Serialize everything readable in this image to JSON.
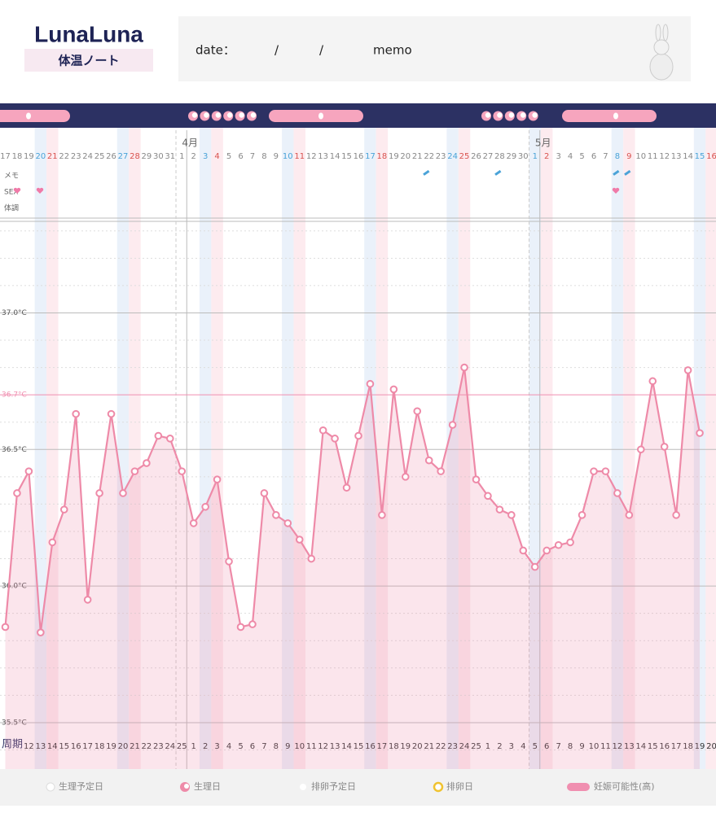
{
  "header": {
    "logo": "LunaLuna",
    "subtitle": "体温ノート",
    "date_label": "date：",
    "separator": "/",
    "memo_label": "memo"
  },
  "row_labels": [
    "メモ",
    "SEX",
    "体調"
  ],
  "chart_data": {
    "type": "line",
    "categories": [
      "17",
      "18",
      "19",
      "20",
      "21",
      "22",
      "23",
      "24",
      "25",
      "26",
      "27",
      "28",
      "29",
      "30",
      "31",
      "1",
      "2",
      "3",
      "4",
      "5",
      "6",
      "7",
      "8",
      "9",
      "10",
      "11",
      "12",
      "13",
      "14",
      "15",
      "16",
      "17",
      "18",
      "19",
      "20",
      "21",
      "22",
      "23",
      "24",
      "25",
      "26",
      "27",
      "28",
      "29",
      "30",
      "1",
      "2",
      "3",
      "4",
      "5",
      "6",
      "7",
      "8",
      "9",
      "10",
      "11",
      "12",
      "13",
      "14",
      "15",
      "16"
    ],
    "month_labels": [
      "4月",
      "5月"
    ],
    "cycle_label": "周期",
    "cycle_days": [
      null,
      null,
      "12",
      "13",
      "14",
      "15",
      "16",
      "17",
      "18",
      "19",
      "20",
      "21",
      "22",
      "23",
      "24",
      "25",
      "1",
      "2",
      "3",
      "4",
      "5",
      "6",
      "7",
      "8",
      "9",
      "10",
      "11",
      "12",
      "13",
      "14",
      "15",
      "16",
      "17",
      "18",
      "19",
      "20",
      "21",
      "22",
      "23",
      "24",
      "25",
      "1",
      "2",
      "3",
      "4",
      "5",
      "6",
      "7",
      "8",
      "9",
      "10",
      "11",
      "12",
      "13",
      "14",
      "15",
      "16",
      "17",
      "18",
      "19",
      "20"
    ],
    "values": [
      35.85,
      36.34,
      36.42,
      35.83,
      36.16,
      36.28,
      36.63,
      35.95,
      36.34,
      36.63,
      36.34,
      36.42,
      36.45,
      36.55,
      36.54,
      36.42,
      36.23,
      36.29,
      36.39,
      36.09,
      35.85,
      35.86,
      36.34,
      36.26,
      36.23,
      36.17,
      36.1,
      36.57,
      36.54,
      36.36,
      36.55,
      36.74,
      36.26,
      36.72,
      36.4,
      36.64,
      36.46,
      36.42,
      36.59,
      36.8,
      36.39,
      36.33,
      36.28,
      36.26,
      36.13,
      36.07,
      36.13,
      36.15,
      36.16,
      36.26,
      36.42,
      36.42,
      36.34,
      36.26,
      36.5,
      36.75,
      36.51,
      36.26,
      36.79,
      36.56,
      null
    ],
    "color": "#ee8aa8",
    "ylim": [
      35.33,
      37.335
    ],
    "yticks": [
      {
        "value": 35.5,
        "label": "35.5°C"
      },
      {
        "value": 36.0,
        "label": "36.0°C"
      },
      {
        "value": 36.5,
        "label": "36.5°C"
      },
      {
        "value": 36.7,
        "label": "36.7°C",
        "color": "#f08fb0"
      },
      {
        "value": 37.0,
        "label": "37.0°C"
      }
    ],
    "minor_yticks": [
      35.4,
      35.6,
      35.7,
      35.8,
      35.9,
      36.1,
      36.2,
      36.3,
      36.4,
      36.6,
      36.8,
      36.9,
      37.1,
      37.2,
      37.3
    ],
    "grid": true
  },
  "legend": [
    "生理予定日",
    "生理日",
    "排卵予定日",
    "排卵日",
    "妊娠可能性(高)"
  ]
}
